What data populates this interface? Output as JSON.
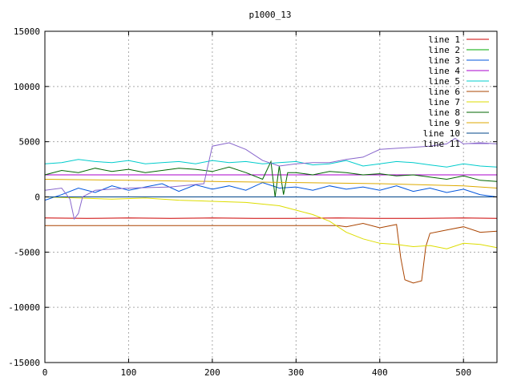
{
  "chart_data": {
    "type": "line",
    "title": "p1000_13",
    "xlim": [
      0,
      540
    ],
    "ylim": [
      -15000,
      15000
    ],
    "x_ticks": [
      0,
      100,
      200,
      300,
      400,
      500
    ],
    "y_ticks": [
      -15000,
      -10000,
      -5000,
      0,
      5000,
      10000,
      15000
    ],
    "x_tick_labels": [
      "0",
      "100",
      "200",
      "300",
      "400",
      "500"
    ],
    "y_tick_labels": [
      "-15000",
      "-10000",
      "-5000",
      "0",
      "5000",
      "10000",
      "15000"
    ],
    "grid": true,
    "legend_position": "top-right",
    "series": [
      {
        "name": "line 1",
        "color": "#cc0000",
        "x": [
          0,
          50,
          100,
          150,
          200,
          250,
          300,
          350,
          400,
          450,
          500,
          540
        ],
        "y": [
          -1900,
          -1950,
          -1900,
          -1950,
          -1900,
          -1950,
          -1950,
          -1900,
          -1950,
          -1950,
          -1900,
          -1950
        ]
      },
      {
        "name": "line 2",
        "color": "#00aa00",
        "x": [
          0,
          100,
          200,
          300,
          400,
          500,
          540
        ],
        "y": [
          0,
          0,
          0,
          0,
          0,
          0,
          0
        ]
      },
      {
        "name": "line 3",
        "color": "#0055dd",
        "x": [
          0,
          20,
          40,
          60,
          80,
          100,
          120,
          140,
          160,
          180,
          200,
          220,
          240,
          260,
          280,
          300,
          320,
          340,
          360,
          380,
          400,
          420,
          440,
          460,
          480,
          500,
          520,
          540
        ],
        "y": [
          -300,
          200,
          800,
          400,
          1000,
          600,
          900,
          1200,
          500,
          1100,
          700,
          1000,
          600,
          1300,
          800,
          900,
          600,
          1000,
          700,
          900,
          600,
          1000,
          500,
          800,
          400,
          700,
          200,
          0
        ]
      },
      {
        "name": "line 4",
        "color": "#aa00cc",
        "x": [
          0,
          100,
          200,
          300,
          400,
          500,
          540
        ],
        "y": [
          2000,
          2000,
          2000,
          2000,
          2000,
          2000,
          2000
        ]
      },
      {
        "name": "line 5",
        "color": "#00cccc",
        "x": [
          0,
          20,
          40,
          60,
          80,
          100,
          120,
          140,
          160,
          180,
          200,
          220,
          240,
          260,
          280,
          300,
          320,
          340,
          360,
          380,
          400,
          420,
          440,
          460,
          480,
          500,
          520,
          540
        ],
        "y": [
          3000,
          3100,
          3400,
          3200,
          3100,
          3300,
          3000,
          3100,
          3200,
          3000,
          3300,
          3100,
          3200,
          3000,
          3100,
          3200,
          2900,
          3000,
          3300,
          2800,
          3000,
          3200,
          3100,
          2900,
          2700,
          3000,
          2800,
          2700
        ]
      },
      {
        "name": "line 6",
        "color": "#aa4400",
        "x": [
          0,
          100,
          200,
          300,
          350,
          360,
          380,
          400,
          420,
          425,
          430,
          440,
          450,
          455,
          460,
          480,
          500,
          520,
          540
        ],
        "y": [
          -2600,
          -2600,
          -2600,
          -2600,
          -2600,
          -2700,
          -2400,
          -2800,
          -2500,
          -5500,
          -7500,
          -7800,
          -7600,
          -4500,
          -3300,
          -3000,
          -2700,
          -3200,
          -3100
        ]
      },
      {
        "name": "line 7",
        "color": "#dddd00",
        "x": [
          0,
          40,
          80,
          120,
          160,
          200,
          240,
          280,
          300,
          320,
          340,
          360,
          380,
          400,
          420,
          440,
          460,
          480,
          500,
          520,
          540
        ],
        "y": [
          0,
          -100,
          -200,
          -100,
          -300,
          -400,
          -500,
          -800,
          -1200,
          -1600,
          -2200,
          -3200,
          -3800,
          -4200,
          -4300,
          -4500,
          -4400,
          -4700,
          -4200,
          -4300,
          -4600
        ]
      },
      {
        "name": "line 8",
        "color": "#006600",
        "x": [
          0,
          20,
          40,
          60,
          80,
          100,
          120,
          140,
          160,
          180,
          200,
          220,
          240,
          260,
          270,
          275,
          280,
          285,
          290,
          300,
          320,
          340,
          360,
          380,
          400,
          420,
          440,
          460,
          480,
          500,
          520,
          540
        ],
        "y": [
          2000,
          2400,
          2200,
          2600,
          2300,
          2500,
          2200,
          2400,
          2600,
          2500,
          2300,
          2700,
          2200,
          1600,
          3200,
          0,
          2800,
          200,
          2200,
          2200,
          2000,
          2300,
          2200,
          2000,
          2100,
          1900,
          2000,
          1800,
          1600,
          1900,
          1500,
          1400
        ]
      },
      {
        "name": "line 9",
        "color": "#ddaa00",
        "x": [
          0,
          100,
          200,
          300,
          400,
          500,
          540
        ],
        "y": [
          1600,
          1500,
          1400,
          1300,
          1200,
          1000,
          800
        ]
      },
      {
        "name": "line 10",
        "color": "#004488",
        "x": [
          0,
          100,
          200,
          300,
          400,
          500,
          540
        ],
        "y": [
          0,
          0,
          0,
          0,
          0,
          0,
          0
        ]
      },
      {
        "name": "line 11",
        "color": "#8866cc",
        "x": [
          0,
          20,
          30,
          35,
          40,
          45,
          60,
          100,
          150,
          190,
          200,
          220,
          240,
          260,
          280,
          300,
          320,
          340,
          360,
          380,
          400,
          420,
          440,
          460,
          480,
          490,
          500,
          520,
          540
        ],
        "y": [
          600,
          800,
          -200,
          -2000,
          -1500,
          0,
          600,
          800,
          900,
          1200,
          4600,
          4900,
          4300,
          3300,
          2800,
          3000,
          3100,
          3100,
          3400,
          3600,
          4300,
          4400,
          4500,
          4600,
          4800,
          5300,
          4800,
          4900,
          4800
        ]
      }
    ]
  }
}
